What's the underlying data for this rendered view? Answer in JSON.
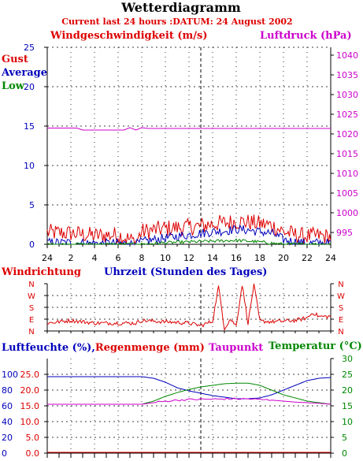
{
  "title": "Wetterdiagramm",
  "subtitle": "Current last 24 hours :DATUM: 24 August 2002",
  "colors": {
    "red": "#dd0000",
    "blue": "#0000bb",
    "green": "#008800",
    "magenta": "#cc00cc",
    "grid": "#000000"
  },
  "chart_data": [
    {
      "type": "line",
      "ylabel": "Windgeschwindigkeit (m/s)",
      "y2label": "Luftdruck (hPa)",
      "xlabel": "Uhrzeit (Stunden des Tages)",
      "x_tick_labels": [
        "24",
        "2",
        "4",
        "6",
        "8",
        "10",
        "12",
        "14",
        "16",
        "18",
        "20",
        "22",
        "24"
      ],
      "ylim": [
        0,
        25
      ],
      "y_ticks": [
        0,
        5,
        10,
        15,
        20,
        25
      ],
      "y2lim": [
        992,
        1042
      ],
      "y2_ticks": [
        995,
        1000,
        1005,
        1010,
        1015,
        1020,
        1025,
        1030,
        1035,
        1040
      ],
      "grid": true,
      "legend": [
        "Gust",
        "Average",
        "Low"
      ],
      "series": [
        {
          "name": "Gust",
          "x_hours": [
            0,
            2,
            4,
            6,
            7.5,
            8,
            10,
            12,
            13,
            14,
            15,
            16,
            17,
            18,
            19,
            20,
            21,
            22,
            23,
            24
          ],
          "values": [
            1.5,
            1.4,
            1.1,
            1.2,
            0.3,
            1.6,
            2.0,
            2.2,
            2.3,
            2.6,
            2.7,
            2.9,
            2.8,
            2.6,
            2.4,
            1.6,
            1.2,
            1.0,
            1.1,
            0.9
          ]
        },
        {
          "name": "Average",
          "x_hours": [
            0,
            2,
            4,
            6,
            7.5,
            8,
            10,
            12,
            13,
            14,
            15,
            16,
            17,
            18,
            19,
            20,
            21,
            22,
            23,
            24
          ],
          "values": [
            0.2,
            0.2,
            0.1,
            0.1,
            0,
            0.3,
            0.8,
            1.2,
            1.4,
            1.6,
            1.7,
            1.9,
            1.8,
            1.6,
            1.4,
            0.6,
            0.3,
            0.1,
            0.2,
            0.1
          ]
        },
        {
          "name": "Low",
          "x_hours": [
            0,
            4,
            8,
            10,
            12,
            14,
            16,
            18,
            20,
            22,
            24
          ],
          "values": [
            0,
            0,
            0,
            0.2,
            0.3,
            0.4,
            0.5,
            0.3,
            0,
            0,
            0
          ]
        },
        {
          "name": "Luftdruck",
          "axis": "y2",
          "x_hours": [
            0,
            2.5,
            3,
            6.5,
            7.0,
            7.5,
            8,
            8.5,
            24
          ],
          "values": [
            1021.5,
            1021.5,
            1021.0,
            1021.0,
            1021.6,
            1021.0,
            1021.6,
            1021.4,
            1021.4
          ]
        }
      ]
    },
    {
      "type": "line",
      "ylabel": "Windrichtung",
      "y_tick_labels": [
        "N",
        "W",
        "S",
        "E",
        "N"
      ],
      "ylim": [
        0,
        360
      ],
      "series": [
        {
          "name": "Windrichtung",
          "x_hours": [
            0,
            2,
            4,
            6,
            7.5,
            8,
            10,
            12,
            13,
            14,
            14.5,
            15,
            15.5,
            16,
            16.5,
            17,
            17.5,
            18,
            19,
            20,
            21,
            22,
            22.5,
            23,
            24
          ],
          "values": [
            60,
            80,
            60,
            60,
            60,
            80,
            70,
            60,
            40,
            75,
            340,
            20,
            90,
            40,
            355,
            60,
            355,
            75,
            70,
            75,
            80,
            100,
            140,
            110,
            110
          ]
        }
      ]
    },
    {
      "type": "line",
      "ylabel": "Luftfeuchte (%),Regenmenge (mm)",
      "y2label_dewpoint": "Taupunkt",
      "y2label": "Temperatur (°C)",
      "y_ticks_humidity": [
        0,
        20,
        40,
        60,
        80,
        100
      ],
      "y_ticks_rain": [
        "0.0",
        "5.0",
        "10.0",
        "15.0",
        "20.0",
        "25.0"
      ],
      "y2_ticks": [
        0,
        5,
        10,
        15,
        20,
        25,
        30
      ],
      "ylim": [
        0,
        120
      ],
      "y2lim": [
        0,
        30
      ],
      "series": [
        {
          "name": "Luftfeuchte",
          "x_hours": [
            0,
            4,
            8,
            9,
            10,
            11,
            12,
            13,
            14,
            15,
            16,
            17,
            18,
            19,
            20,
            21,
            22,
            23,
            24
          ],
          "values": [
            97,
            97,
            97,
            95,
            90,
            83,
            79,
            76,
            73,
            71,
            69,
            69,
            70,
            74,
            80,
            86,
            92,
            95,
            96
          ]
        },
        {
          "name": "Regenmenge",
          "x_hours": [
            0,
            24
          ],
          "values": [
            0,
            0
          ]
        },
        {
          "name": "Temperatur",
          "x_hours": [
            0,
            4,
            8,
            9,
            10,
            11,
            12,
            13,
            14,
            15,
            16,
            17,
            18,
            19,
            20,
            21,
            22,
            23,
            24
          ],
          "values": [
            15.5,
            15.5,
            15.5,
            16.5,
            18,
            19.2,
            20.2,
            21,
            21.5,
            22,
            22.2,
            22.2,
            21.5,
            20,
            18.5,
            17.5,
            16.5,
            16,
            15.5
          ]
        },
        {
          "name": "Taupunkt",
          "x_hours": [
            0,
            4,
            8,
            9,
            10,
            11,
            12,
            13,
            14,
            15,
            16,
            17,
            18,
            19,
            20,
            21,
            22,
            23,
            24
          ],
          "values": [
            15.5,
            15.5,
            15.5,
            16.0,
            16.5,
            16.8,
            17.0,
            17.1,
            17.1,
            17.2,
            17.2,
            17.2,
            17.0,
            16.8,
            16.5,
            16.2,
            16.0,
            15.8,
            15.5
          ]
        }
      ]
    }
  ]
}
